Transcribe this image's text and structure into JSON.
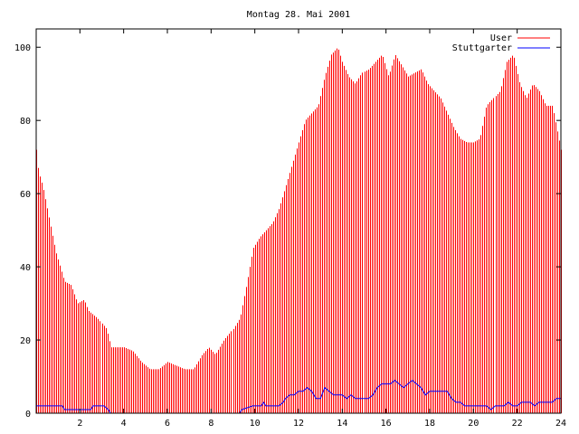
{
  "chart_data": {
    "type": "bar",
    "title": "Montag 28. Mai 2001",
    "xlabel": "",
    "ylabel": "",
    "xlim": [
      0,
      24
    ],
    "ylim": [
      0,
      105
    ],
    "x_ticks": [
      2,
      4,
      6,
      8,
      10,
      12,
      14,
      16,
      18,
      20,
      22,
      24
    ],
    "y_ticks": [
      0,
      20,
      40,
      60,
      80,
      100
    ],
    "grid": false,
    "legend_position": "top-right",
    "series": [
      {
        "name": "User",
        "style": "impulses",
        "color": "#ff0000",
        "knots": [
          [
            0,
            72
          ],
          [
            0.1,
            66
          ],
          [
            0.3,
            62
          ],
          [
            0.5,
            56
          ],
          [
            0.7,
            50
          ],
          [
            0.9,
            44
          ],
          [
            1.1,
            40
          ],
          [
            1.3,
            36
          ],
          [
            1.6,
            35
          ],
          [
            1.9,
            30
          ],
          [
            2.2,
            31
          ],
          [
            2.4,
            28
          ],
          [
            2.8,
            26
          ],
          [
            3.2,
            23
          ],
          [
            3.4,
            18
          ],
          [
            4.0,
            18
          ],
          [
            4.4,
            17
          ],
          [
            4.8,
            14
          ],
          [
            5.2,
            12
          ],
          [
            5.6,
            12
          ],
          [
            6.0,
            14
          ],
          [
            6.4,
            13
          ],
          [
            6.8,
            12
          ],
          [
            7.2,
            12
          ],
          [
            7.6,
            16
          ],
          [
            7.9,
            18
          ],
          [
            8.2,
            16
          ],
          [
            8.6,
            20
          ],
          [
            9.0,
            23
          ],
          [
            9.3,
            26
          ],
          [
            9.6,
            35
          ],
          [
            9.9,
            45
          ],
          [
            10.2,
            48
          ],
          [
            10.5,
            50
          ],
          [
            10.8,
            52
          ],
          [
            11.1,
            56
          ],
          [
            11.4,
            62
          ],
          [
            11.7,
            68
          ],
          [
            12.0,
            74
          ],
          [
            12.3,
            80
          ],
          [
            12.6,
            82
          ],
          [
            12.9,
            84
          ],
          [
            13.2,
            92
          ],
          [
            13.5,
            98
          ],
          [
            13.8,
            100
          ],
          [
            14.0,
            96
          ],
          [
            14.3,
            92
          ],
          [
            14.6,
            90
          ],
          [
            14.9,
            93
          ],
          [
            15.2,
            94
          ],
          [
            15.5,
            96
          ],
          [
            15.8,
            98
          ],
          [
            16.1,
            92
          ],
          [
            16.4,
            98
          ],
          [
            16.7,
            95
          ],
          [
            17.0,
            92
          ],
          [
            17.3,
            93
          ],
          [
            17.6,
            94
          ],
          [
            17.9,
            90
          ],
          [
            18.2,
            88
          ],
          [
            18.5,
            86
          ],
          [
            18.8,
            82
          ],
          [
            19.1,
            78
          ],
          [
            19.4,
            75
          ],
          [
            19.7,
            74
          ],
          [
            20.0,
            74
          ],
          [
            20.3,
            75
          ],
          [
            20.6,
            84
          ],
          [
            20.9,
            86
          ],
          [
            21.2,
            88
          ],
          [
            21.5,
            96
          ],
          [
            21.8,
            98
          ],
          [
            22.1,
            90
          ],
          [
            22.4,
            86
          ],
          [
            22.7,
            90
          ],
          [
            23.0,
            88
          ],
          [
            23.3,
            84
          ],
          [
            23.6,
            84
          ],
          [
            23.8,
            78
          ],
          [
            24.0,
            72
          ]
        ]
      },
      {
        "name": "Stuttgarter",
        "style": "lines",
        "color": "#0000ff",
        "points": [
          [
            0,
            2
          ],
          [
            1.2,
            2
          ],
          [
            1.3,
            1
          ],
          [
            2.5,
            1
          ],
          [
            2.6,
            2
          ],
          [
            3.1,
            2
          ],
          [
            3.3,
            1
          ],
          [
            3.4,
            0
          ],
          [
            9.3,
            0
          ],
          [
            9.4,
            1
          ],
          [
            9.9,
            2
          ],
          [
            10.3,
            2
          ],
          [
            10.4,
            3
          ],
          [
            10.5,
            2
          ],
          [
            11.1,
            2
          ],
          [
            11.3,
            3
          ],
          [
            11.4,
            4
          ],
          [
            11.6,
            5
          ],
          [
            11.8,
            5
          ],
          [
            12.0,
            6
          ],
          [
            12.2,
            6
          ],
          [
            12.4,
            7
          ],
          [
            12.6,
            6
          ],
          [
            12.8,
            4
          ],
          [
            13.0,
            4
          ],
          [
            13.2,
            7
          ],
          [
            13.4,
            6
          ],
          [
            13.6,
            5
          ],
          [
            13.8,
            5
          ],
          [
            14.0,
            5
          ],
          [
            14.2,
            4
          ],
          [
            14.4,
            5
          ],
          [
            14.6,
            4
          ],
          [
            14.8,
            4
          ],
          [
            15.0,
            4
          ],
          [
            15.2,
            4
          ],
          [
            15.4,
            5
          ],
          [
            15.6,
            7
          ],
          [
            15.8,
            8
          ],
          [
            16.0,
            8
          ],
          [
            16.2,
            8
          ],
          [
            16.4,
            9
          ],
          [
            16.6,
            8
          ],
          [
            16.8,
            7
          ],
          [
            17.0,
            8
          ],
          [
            17.2,
            9
          ],
          [
            17.4,
            8
          ],
          [
            17.6,
            7
          ],
          [
            17.8,
            5
          ],
          [
            18.0,
            6
          ],
          [
            18.2,
            6
          ],
          [
            18.4,
            6
          ],
          [
            18.6,
            6
          ],
          [
            18.8,
            6
          ],
          [
            19.0,
            4
          ],
          [
            19.2,
            3
          ],
          [
            19.4,
            3
          ],
          [
            19.6,
            2
          ],
          [
            20.0,
            2
          ],
          [
            20.6,
            2
          ],
          [
            20.8,
            1
          ],
          [
            21.0,
            2
          ],
          [
            21.4,
            2
          ],
          [
            21.6,
            3
          ],
          [
            21.8,
            2
          ],
          [
            22.0,
            2
          ],
          [
            22.2,
            3
          ],
          [
            22.6,
            3
          ],
          [
            22.8,
            2
          ],
          [
            23.0,
            3
          ],
          [
            23.4,
            3
          ],
          [
            23.6,
            3
          ],
          [
            23.8,
            4
          ],
          [
            24.0,
            4
          ]
        ]
      }
    ]
  }
}
